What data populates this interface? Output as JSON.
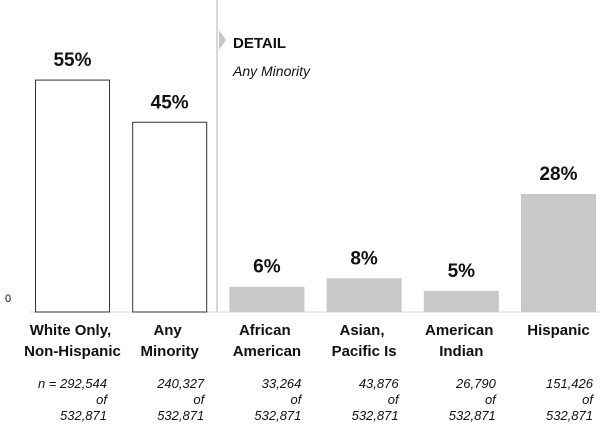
{
  "chart_data": {
    "type": "bar",
    "categories": [
      "White Only, Non-Hispanic",
      "Any Minority",
      "African American",
      "Asian, Pacific Is",
      "American Indian",
      "Hispanic"
    ],
    "values": [
      55,
      45,
      6,
      8,
      5,
      28
    ],
    "value_labels": [
      "55%",
      "45%",
      "6%",
      "8%",
      "5%",
      "28%"
    ],
    "colors": [
      "#ffffff",
      "#ffffff",
      "#c8c8c8",
      "#c8c8c8",
      "#c8c8c8",
      "#c8c8c8"
    ],
    "outline": [
      true,
      true,
      false,
      false,
      false,
      false
    ],
    "ylim": [
      0,
      60
    ],
    "yticks": [
      0
    ],
    "detail_title": "DETAIL",
    "detail_subtitle": "Any Minority",
    "sample_notes": [
      [
        "n = 292,544",
        "of",
        "532,871"
      ],
      [
        "240,327",
        "of",
        "532,871"
      ],
      [
        "33,264",
        "of",
        "532,871"
      ],
      [
        "43,876",
        "of",
        "532,871"
      ],
      [
        "26,790",
        "of",
        "532,871"
      ],
      [
        "151,426",
        "of",
        "532,871"
      ]
    ]
  }
}
